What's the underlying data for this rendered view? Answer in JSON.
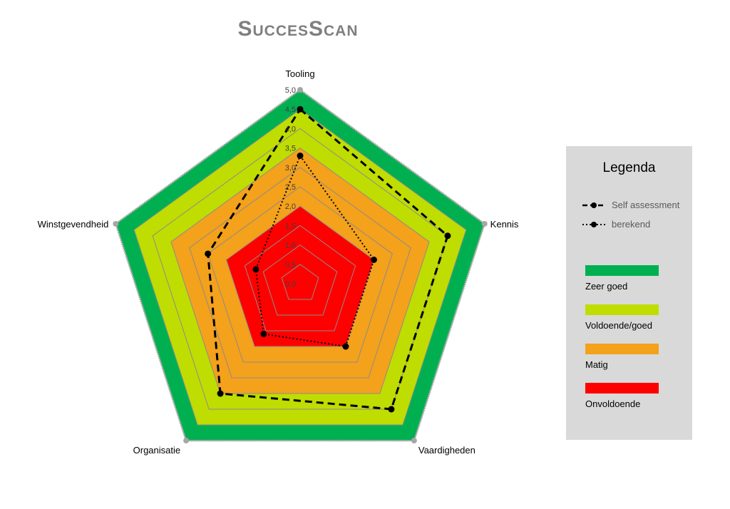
{
  "chart_data": {
    "type": "radar",
    "title": "SuccesScan",
    "axes": [
      "Tooling",
      "Kennis",
      "Vaardigheden",
      "Organisatie",
      "Winstgevendheid"
    ],
    "rmin": 0,
    "rmax": 5,
    "tick_labels": [
      "0,0",
      "0,5",
      "1,0",
      "1,5",
      "2,0",
      "2,5",
      "3,0",
      "3,5",
      "4,0",
      "4,5",
      "5,0"
    ],
    "ticks": [
      0,
      0.5,
      1,
      1.5,
      2,
      2.5,
      3,
      3.5,
      4,
      4.5,
      5
    ],
    "bands": [
      {
        "name": "Zeer goed",
        "from": 4.5,
        "to": 5.0,
        "color": "#00b050"
      },
      {
        "name": "Voldoende/goed",
        "from": 3.5,
        "to": 4.5,
        "color": "#bfdd00"
      },
      {
        "name": "Matig",
        "from": 2.0,
        "to": 3.5,
        "color": "#f4a11b"
      },
      {
        "name": "Onvoldoende",
        "from": 0,
        "to": 2.0,
        "color": "#ff0000"
      }
    ],
    "series": [
      {
        "name": "Self assessment",
        "values": [
          4.5,
          4.0,
          4.0,
          3.5,
          2.5
        ],
        "style": "dashed"
      },
      {
        "name": "berekend",
        "values": [
          3.3,
          2.0,
          2.0,
          1.6,
          1.2
        ],
        "style": "dotted"
      }
    ],
    "grid": true,
    "legend_position": "right"
  },
  "legend": {
    "title": "Legenda"
  }
}
